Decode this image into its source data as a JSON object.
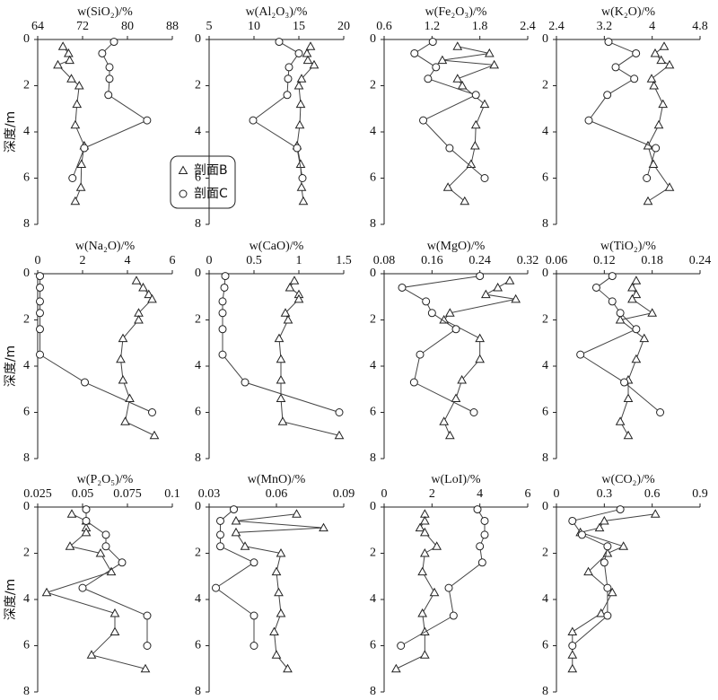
{
  "chart_data": [
    {
      "type": "line",
      "title": "w(SiO₂)/%",
      "ylabel": "深度/m",
      "xlim": [
        64,
        88
      ],
      "xticks": [
        64,
        72,
        80,
        88
      ],
      "ylim": [
        0,
        8
      ],
      "yticks": [
        0,
        2,
        4,
        6,
        8
      ],
      "legend": true,
      "series": [
        {
          "name": "剖面B",
          "marker": "triangle",
          "x": [
            68.5,
            69.5,
            69.7,
            67.6,
            70,
            71.4,
            71,
            70.7,
            72.3,
            71.8,
            71.7,
            70.7
          ],
          "y": [
            0.3,
            0.6,
            0.9,
            1.1,
            1.7,
            2.0,
            2.8,
            3.7,
            4.6,
            5.4,
            6.4,
            7.0
          ]
        },
        {
          "name": "剖面C",
          "marker": "circle",
          "x": [
            77.6,
            75.5,
            76.8,
            76.8,
            76.6,
            83.5,
            72.3,
            70.2
          ],
          "y": [
            0.1,
            0.6,
            1.2,
            1.7,
            2.4,
            3.5,
            4.7,
            6.0
          ]
        }
      ]
    },
    {
      "type": "line",
      "title": "w(Al₂O₃)/%",
      "xlim": [
        5,
        20
      ],
      "xticks": [
        5,
        10,
        15,
        20
      ],
      "ylim": [
        0,
        8
      ],
      "yticks": [
        0,
        2,
        4,
        6,
        8
      ],
      "series": [
        {
          "marker": "triangle",
          "x": [
            16.3,
            15.9,
            16,
            16.7,
            15.3,
            15,
            15.2,
            15.1,
            14.8,
            15.2,
            15.3,
            15.5
          ],
          "y": [
            0.3,
            0.6,
            0.9,
            1.1,
            1.7,
            2.0,
            2.8,
            3.7,
            4.6,
            5.4,
            6.4,
            7.0
          ]
        },
        {
          "marker": "circle",
          "x": [
            12.8,
            15,
            13.9,
            13.8,
            13.7,
            9.9,
            14.8,
            15.4
          ],
          "y": [
            0.1,
            0.6,
            1.2,
            1.7,
            2.4,
            3.5,
            4.7,
            6.0
          ]
        }
      ]
    },
    {
      "type": "line",
      "title": "w(Fe₂O₃)/%",
      "xlim": [
        0.6,
        2.4
      ],
      "xticks": [
        0.6,
        1.2,
        1.8,
        2.4
      ],
      "ylim": [
        0,
        8
      ],
      "yticks": [
        0,
        2,
        4,
        6,
        8
      ],
      "series": [
        {
          "marker": "triangle",
          "x": [
            1.52,
            1.92,
            1.33,
            1.98,
            1.52,
            1.58,
            1.86,
            1.75,
            1.74,
            1.69,
            1.4,
            1.61
          ],
          "y": [
            0.3,
            0.6,
            0.9,
            1.1,
            1.7,
            2.0,
            2.8,
            3.7,
            4.6,
            5.4,
            6.4,
            7.0
          ]
        },
        {
          "marker": "circle",
          "x": [
            1.21,
            0.98,
            1.25,
            1.15,
            1.75,
            1.09,
            1.42,
            1.86
          ],
          "y": [
            0.1,
            0.6,
            1.2,
            1.7,
            2.4,
            3.5,
            4.7,
            6.0
          ]
        }
      ]
    },
    {
      "type": "line",
      "title": "w(K₂O)/%",
      "xlim": [
        2.4,
        4.8
      ],
      "xticks": [
        2.4,
        3.2,
        4,
        4.8
      ],
      "ylim": [
        0,
        8
      ],
      "yticks": [
        0,
        2,
        4,
        6,
        8
      ],
      "series": [
        {
          "marker": "triangle",
          "x": [
            4.2,
            4.05,
            4.15,
            4.29,
            3.99,
            4.03,
            4.18,
            4.11,
            3.93,
            4.02,
            4.29,
            3.93
          ],
          "y": [
            0.3,
            0.6,
            0.9,
            1.1,
            1.7,
            2.0,
            2.8,
            3.7,
            4.6,
            5.4,
            6.4,
            7.0
          ]
        },
        {
          "marker": "circle",
          "x": [
            3.27,
            3.73,
            3.39,
            3.7,
            3.25,
            2.94,
            4.06,
            3.91
          ],
          "y": [
            0.1,
            0.6,
            1.2,
            1.7,
            2.4,
            3.5,
            4.7,
            6.0
          ]
        }
      ]
    },
    {
      "type": "line",
      "title": "w(Na₂O)/%",
      "ylabel": "深度/m",
      "xlim": [
        0,
        6
      ],
      "xticks": [
        0,
        2,
        4,
        6
      ],
      "ylim": [
        0,
        8
      ],
      "yticks": [
        0,
        2,
        4,
        6,
        8
      ],
      "series": [
        {
          "marker": "triangle",
          "x": [
            4.4,
            4.7,
            4.95,
            5.1,
            4.5,
            4.5,
            3.8,
            3.7,
            3.8,
            4.1,
            3.9,
            5.2
          ],
          "y": [
            0.3,
            0.6,
            0.9,
            1.1,
            1.7,
            2.0,
            2.8,
            3.7,
            4.6,
            5.4,
            6.4,
            7.0
          ]
        },
        {
          "marker": "circle",
          "x": [
            0.1,
            0.1,
            0.1,
            0.1,
            0.1,
            0.1,
            2.1,
            5.1
          ],
          "y": [
            0.1,
            0.6,
            1.2,
            1.7,
            2.4,
            3.5,
            4.7,
            6.0
          ]
        }
      ]
    },
    {
      "type": "line",
      "title": "w(CaO)/%",
      "xlim": [
        0,
        1.5
      ],
      "xticks": [
        0,
        0.5,
        1,
        1.5
      ],
      "ylim": [
        0,
        8
      ],
      "yticks": [
        0,
        2,
        4,
        6,
        8
      ],
      "series": [
        {
          "marker": "triangle",
          "x": [
            0.95,
            0.9,
            1,
            1,
            0.85,
            0.88,
            0.78,
            0.8,
            0.8,
            0.8,
            0.82,
            1.45
          ],
          "y": [
            0.3,
            0.6,
            0.9,
            1.1,
            1.7,
            2.0,
            2.8,
            3.7,
            4.6,
            5.4,
            6.4,
            7.0
          ]
        },
        {
          "marker": "circle",
          "x": [
            0.18,
            0.17,
            0.15,
            0.15,
            0.15,
            0.15,
            0.4,
            1.45
          ],
          "y": [
            0.1,
            0.6,
            1.2,
            1.7,
            2.4,
            3.5,
            4.7,
            6.0
          ]
        }
      ]
    },
    {
      "type": "line",
      "title": "w(MgO)/%",
      "xlim": [
        0.08,
        0.32
      ],
      "xticks": [
        0.08,
        0.16,
        0.24,
        0.32
      ],
      "ylim": [
        0,
        8
      ],
      "yticks": [
        0,
        2,
        4,
        6,
        8
      ],
      "series": [
        {
          "marker": "triangle",
          "x": [
            0.29,
            0.27,
            0.25,
            0.3,
            0.19,
            0.18,
            0.24,
            0.24,
            0.21,
            0.2,
            0.18,
            0.19
          ],
          "y": [
            0.3,
            0.6,
            0.9,
            1.1,
            1.7,
            2.0,
            2.8,
            3.7,
            4.6,
            5.4,
            6.4,
            7.0
          ]
        },
        {
          "marker": "circle",
          "x": [
            0.24,
            0.11,
            0.15,
            0.16,
            0.2,
            0.14,
            0.13,
            0.23
          ],
          "y": [
            0.1,
            0.6,
            1.2,
            1.7,
            2.4,
            3.5,
            4.7,
            6.0
          ]
        }
      ]
    },
    {
      "type": "line",
      "title": "w(TiO₂)/%",
      "xlim": [
        0.06,
        0.24
      ],
      "xticks": [
        0.06,
        0.12,
        0.18,
        0.24
      ],
      "ylim": [
        0,
        8
      ],
      "yticks": [
        0,
        2,
        4,
        6,
        8
      ],
      "series": [
        {
          "marker": "triangle",
          "x": [
            0.16,
            0.155,
            0.16,
            0.155,
            0.18,
            0.14,
            0.17,
            0.16,
            0.15,
            0.15,
            0.14,
            0.15
          ],
          "y": [
            0.3,
            0.6,
            0.9,
            1.1,
            1.7,
            2.0,
            2.8,
            3.7,
            4.6,
            5.4,
            6.4,
            7.0
          ]
        },
        {
          "marker": "circle",
          "x": [
            0.13,
            0.11,
            0.13,
            0.14,
            0.16,
            0.09,
            0.145,
            0.19
          ],
          "y": [
            0.1,
            0.6,
            1.2,
            1.7,
            2.4,
            3.5,
            4.7,
            6.0
          ]
        }
      ]
    },
    {
      "type": "line",
      "title": "w(P₂O₅)/%",
      "ylabel": "深度/m",
      "xlim": [
        0.025,
        0.1
      ],
      "xticks": [
        0.025,
        0.05,
        0.075,
        0.1
      ],
      "ylim": [
        0,
        8
      ],
      "yticks": [
        0,
        2,
        4,
        6,
        8
      ],
      "series": [
        {
          "marker": "triangle",
          "x": [
            0.044,
            0.052,
            0.052,
            0.052,
            0.043,
            0.06,
            0.066,
            0.03,
            0.068,
            0.068,
            0.055,
            0.085
          ],
          "y": [
            0.3,
            0.6,
            0.9,
            1.1,
            1.7,
            2.0,
            2.8,
            3.7,
            4.6,
            5.4,
            6.4,
            7.0
          ]
        },
        {
          "marker": "circle",
          "x": [
            0.052,
            0.052,
            0.063,
            0.063,
            0.072,
            0.05,
            0.086,
            0.086
          ],
          "y": [
            0.1,
            0.6,
            1.2,
            1.7,
            2.4,
            3.5,
            4.7,
            6.0
          ]
        }
      ]
    },
    {
      "type": "line",
      "title": "w(MnO)/%",
      "xlim": [
        0.03,
        0.09
      ],
      "xticks": [
        0.03,
        0.06,
        0.09
      ],
      "ylim": [
        0,
        8
      ],
      "yticks": [
        0,
        2,
        4,
        6,
        8
      ],
      "series": [
        {
          "marker": "triangle",
          "x": [
            0.069,
            0.042,
            0.081,
            0.042,
            0.046,
            0.062,
            0.06,
            0.061,
            0.062,
            0.059,
            0.06,
            0.065
          ],
          "y": [
            0.3,
            0.6,
            0.9,
            1.1,
            1.7,
            2.0,
            2.8,
            3.7,
            4.6,
            5.4,
            6.4,
            7.0
          ]
        },
        {
          "marker": "circle",
          "x": [
            0.041,
            0.035,
            0.035,
            0.035,
            0.05,
            0.033,
            0.05,
            0.05
          ],
          "y": [
            0.1,
            0.6,
            1.2,
            1.7,
            2.4,
            3.5,
            4.7,
            6.0
          ]
        }
      ]
    },
    {
      "type": "line",
      "title": "w(LoI)/%",
      "xlim": [
        0,
        6
      ],
      "xticks": [
        0,
        2,
        4,
        6
      ],
      "ylim": [
        0,
        8
      ],
      "yticks": [
        0,
        2,
        4,
        6,
        8
      ],
      "series": [
        {
          "marker": "triangle",
          "x": [
            1.7,
            1.7,
            1.5,
            1.7,
            2.2,
            1.7,
            1.6,
            2.1,
            1.6,
            1.7,
            1.7,
            0.5
          ],
          "y": [
            0.3,
            0.6,
            0.9,
            1.1,
            1.7,
            2.0,
            2.8,
            3.7,
            4.6,
            5.4,
            6.4,
            7.0
          ]
        },
        {
          "marker": "circle",
          "x": [
            3.9,
            4.2,
            4.2,
            4,
            4.1,
            2.7,
            2.9,
            0.7
          ],
          "y": [
            0.1,
            0.6,
            1.2,
            1.7,
            2.4,
            3.5,
            4.7,
            6.0
          ]
        }
      ]
    },
    {
      "type": "line",
      "title": "w(CO₂)/%",
      "xlim": [
        0,
        0.9
      ],
      "xticks": [
        0,
        0.3,
        0.6,
        0.9
      ],
      "ylim": [
        0,
        8
      ],
      "yticks": [
        0,
        2,
        4,
        6,
        8
      ],
      "series": [
        {
          "marker": "triangle",
          "x": [
            0.62,
            0.3,
            0.27,
            0.15,
            0.42,
            0.32,
            0.2,
            0.35,
            0.28,
            0.1,
            0.1,
            0.1
          ],
          "y": [
            0.3,
            0.6,
            0.9,
            1.1,
            1.7,
            2.0,
            2.8,
            3.7,
            4.6,
            5.4,
            6.4,
            7.0
          ]
        },
        {
          "marker": "circle",
          "x": [
            0.4,
            0.1,
            0.16,
            0.32,
            0.3,
            0.32,
            0.32,
            0.1
          ],
          "y": [
            0.1,
            0.6,
            1.2,
            1.7,
            2.4,
            3.5,
            4.7,
            6.0
          ]
        }
      ]
    }
  ]
}
